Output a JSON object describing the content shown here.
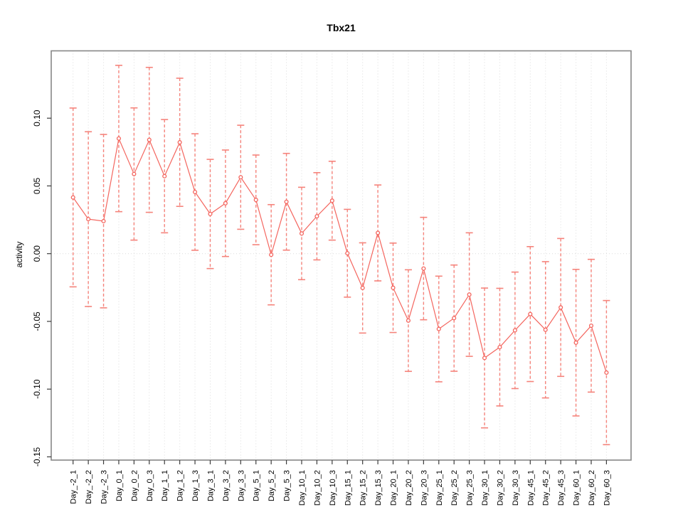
{
  "chart_data": {
    "type": "line",
    "title": "Tbx21",
    "xlabel": "",
    "ylabel": "activity",
    "legend": "none",
    "grid": "vertical dotted gridline at every category; horizontal dotted line at y=0",
    "point_style": "open-circle connected by line segments",
    "error_bar_style": "vertical dashed bar with solid horizontal end caps",
    "ylim": [
      -0.155,
      0.15
    ],
    "yticks": [
      0.1,
      0.05,
      0.0,
      -0.05,
      -0.1,
      -0.15
    ],
    "ytick_labels": [
      "0.10",
      "0.05",
      "0.00",
      "-0.05",
      "-0.10",
      "-0.15"
    ],
    "categories": [
      "Day_-2_1",
      "Day_-2_2",
      "Day_-2_3",
      "Day_0_1",
      "Day_0_2",
      "Day_0_3",
      "Day_1_1",
      "Day_1_2",
      "Day_1_3",
      "Day_3_1",
      "Day_3_2",
      "Day_3_3",
      "Day_5_1",
      "Day_5_2",
      "Day_5_3",
      "Day_10_1",
      "Day_10_2",
      "Day_10_3",
      "Day_15_1",
      "Day_15_2",
      "Day_15_3",
      "Day_20_1",
      "Day_20_2",
      "Day_20_3",
      "Day_25_1",
      "Day_25_2",
      "Day_25_3",
      "Day_30_1",
      "Day_30_2",
      "Day_30_3",
      "Day_45_1",
      "Day_45_2",
      "Day_45_3",
      "Day_60_1",
      "Day_60_2",
      "Day_60_3"
    ],
    "series": [
      {
        "name": "activity",
        "values": [
          0.0415,
          0.0255,
          0.024,
          0.085,
          0.0588,
          0.084,
          0.0572,
          0.0822,
          0.0455,
          0.0293,
          0.0372,
          0.0564,
          0.0397,
          -0.0008,
          0.0383,
          0.0149,
          0.0276,
          0.0391,
          0.0003,
          -0.0253,
          0.0153,
          -0.0252,
          -0.0494,
          -0.011,
          -0.0556,
          -0.0476,
          -0.0302,
          -0.077,
          -0.069,
          -0.0566,
          -0.0446,
          -0.0562,
          -0.0397,
          -0.0657,
          -0.0532,
          -0.0878
        ],
        "errors": [
          0.066,
          0.0645,
          0.064,
          0.054,
          0.0488,
          0.0535,
          0.0418,
          0.0473,
          0.043,
          0.0403,
          0.0393,
          0.0384,
          0.0331,
          0.037,
          0.0357,
          0.0341,
          0.0322,
          0.0291,
          0.0324,
          0.0333,
          0.0354,
          0.033,
          0.0375,
          0.0378,
          0.039,
          0.0392,
          0.0456,
          0.0516,
          0.0434,
          0.043,
          0.0498,
          0.0503,
          0.0509,
          0.0541,
          0.049,
          0.0532
        ]
      }
    ],
    "colors": {
      "series": "#F4655E",
      "error_bar": "#F5837B",
      "grid": "#DBDBDB",
      "frame": "#878787",
      "tick": "#3C3C3C",
      "text": "#000000",
      "background": "#FFFFFF"
    }
  }
}
